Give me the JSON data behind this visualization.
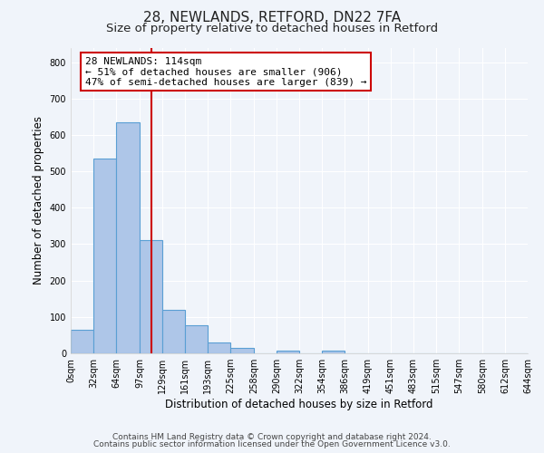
{
  "title": "28, NEWLANDS, RETFORD, DN22 7FA",
  "subtitle": "Size of property relative to detached houses in Retford",
  "xlabel": "Distribution of detached houses by size in Retford",
  "ylabel": "Number of detached properties",
  "footer_line1": "Contains HM Land Registry data © Crown copyright and database right 2024.",
  "footer_line2": "Contains public sector information licensed under the Open Government Licence v3.0.",
  "bin_edges": [
    0,
    32,
    64,
    97,
    129,
    161,
    193,
    225,
    258,
    290,
    322,
    354,
    386,
    419,
    451,
    483,
    515,
    547,
    580,
    612,
    644
  ],
  "bin_labels": [
    "0sqm",
    "32sqm",
    "64sqm",
    "97sqm",
    "129sqm",
    "161sqm",
    "193sqm",
    "225sqm",
    "258sqm",
    "290sqm",
    "322sqm",
    "354sqm",
    "386sqm",
    "419sqm",
    "451sqm",
    "483sqm",
    "515sqm",
    "547sqm",
    "580sqm",
    "612sqm",
    "644sqm"
  ],
  "bar_heights": [
    65,
    535,
    635,
    312,
    120,
    76,
    30,
    14,
    0,
    8,
    0,
    8,
    0,
    0,
    0,
    0,
    0,
    0,
    0,
    0
  ],
  "bar_color": "#aec6e8",
  "bar_edge_color": "#5a9fd4",
  "vline_x": 114,
  "vline_color": "#cc0000",
  "ylim": [
    0,
    840
  ],
  "yticks": [
    0,
    100,
    200,
    300,
    400,
    500,
    600,
    700,
    800
  ],
  "annotation_title": "28 NEWLANDS: 114sqm",
  "annotation_line1": "← 51% of detached houses are smaller (906)",
  "annotation_line2": "47% of semi-detached houses are larger (839) →",
  "annotation_box_color": "#ffffff",
  "annotation_box_edge_color": "#cc0000",
  "background_color": "#f0f4fa",
  "grid_color": "#ffffff",
  "title_fontsize": 11,
  "subtitle_fontsize": 9.5,
  "axis_label_fontsize": 8.5,
  "tick_fontsize": 7,
  "annotation_fontsize": 8,
  "footer_fontsize": 6.5
}
